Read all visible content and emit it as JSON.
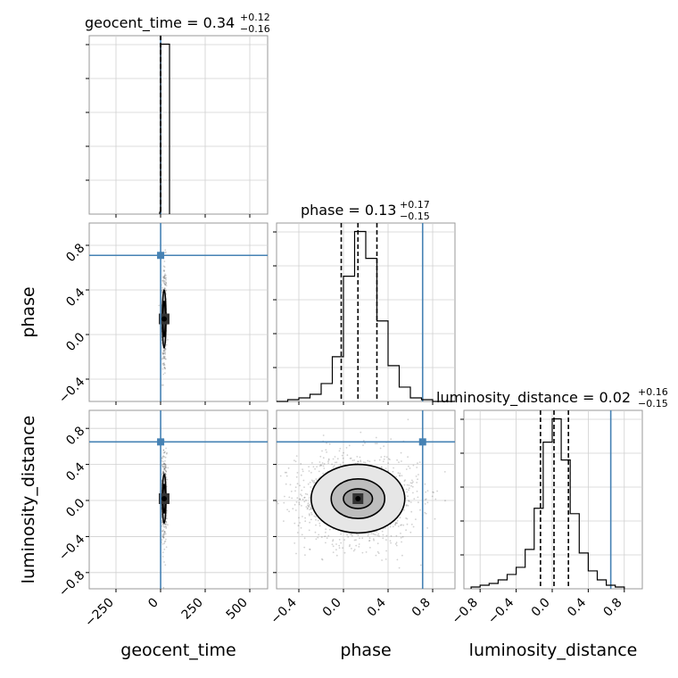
{
  "chart_data": {
    "type": "corner",
    "parameters": [
      {
        "name": "geocent_time",
        "label": "geocent_time",
        "range": [
          -400,
          600
        ],
        "ticks": [
          -250,
          0,
          250,
          500
        ],
        "tick_labels": [
          "−250",
          "0",
          "250",
          "500"
        ],
        "truth": 0.34
      },
      {
        "name": "phase",
        "label": "phase",
        "range": [
          -0.6,
          1.0
        ],
        "ticks": [
          -0.4,
          0.0,
          0.4,
          0.8
        ],
        "tick_labels": [
          "−0.4",
          "0.0",
          "0.4",
          "0.8"
        ],
        "truth": 0.71
      },
      {
        "name": "luminosity_distance",
        "label": "luminosity_distance",
        "range": [
          -0.98,
          1.0
        ],
        "ticks": [
          -0.8,
          -0.4,
          0.0,
          0.4,
          0.8
        ],
        "tick_labels": [
          "−0.8",
          "−0.4",
          "0.0",
          "0.4",
          "0.8"
        ],
        "truth": 0.65
      }
    ],
    "titles": [
      {
        "main": "geocent_time = 0.34",
        "plus": "+0.12",
        "minus": "−0.16"
      },
      {
        "main": "phase = 0.13",
        "plus": "+0.17",
        "minus": "−0.15"
      },
      {
        "main": "luminosity_distance = 0.02",
        "plus": "+0.16",
        "minus": "−0.15"
      }
    ],
    "histograms": [
      {
        "parameter": "geocent_time",
        "edges": [
          -5,
          0,
          5,
          10,
          15,
          20,
          25,
          30,
          35,
          40,
          45,
          50
        ],
        "counts": [
          0.6,
          54.6,
          54.6,
          54.6,
          54.6,
          54.6,
          54.6,
          54.6,
          54.6,
          54.6,
          54.6,
          0
        ],
        "quantiles": [
          0.18,
          0.34,
          0.46
        ]
      },
      {
        "parameter": "phase",
        "edges": [
          -0.6,
          -0.5,
          -0.4,
          -0.3,
          -0.2,
          -0.1,
          0.0,
          0.1,
          0.2,
          0.3,
          0.4,
          0.5,
          0.6,
          0.7,
          0.8,
          0.9,
          1.0
        ],
        "counts": [
          0,
          1,
          2,
          4,
          10,
          25,
          70,
          95,
          80,
          45,
          20,
          8,
          2,
          1,
          0,
          0
        ],
        "quantiles": [
          -0.02,
          0.13,
          0.3
        ]
      },
      {
        "parameter": "luminosity_distance",
        "edges": [
          -0.9,
          -0.8,
          -0.7,
          -0.6,
          -0.5,
          -0.4,
          -0.3,
          -0.2,
          -0.1,
          0.0,
          0.1,
          0.2,
          0.3,
          0.4,
          0.5,
          0.6,
          0.7,
          0.8
        ],
        "counts": [
          1,
          2,
          3,
          5,
          8,
          12,
          22,
          45,
          82,
          95,
          72,
          42,
          20,
          10,
          5,
          2,
          1
        ],
        "quantiles": [
          -0.13,
          0.02,
          0.18
        ]
      }
    ],
    "pairs": [
      {
        "x": "geocent_time",
        "y": "phase",
        "center": [
          20,
          0.14
        ],
        "spread": [
          6,
          0.16
        ],
        "contour_levels": [
          [
            6,
            0.16
          ],
          [
            10,
            0.26
          ]
        ]
      },
      {
        "x": "geocent_time",
        "y": "luminosity_distance",
        "center": [
          20,
          0.02
        ],
        "spread": [
          6,
          0.16
        ],
        "contour_levels": [
          [
            6,
            0.16
          ],
          [
            10,
            0.27
          ]
        ]
      },
      {
        "x": "phase",
        "y": "luminosity_distance",
        "center": [
          0.13,
          0.02
        ],
        "spread": [
          0.17,
          0.16
        ],
        "contour_levels": [
          [
            0.13,
            0.11
          ],
          [
            0.24,
            0.22
          ],
          [
            0.42,
            0.38
          ]
        ]
      }
    ],
    "truth_color": "#4682b4",
    "contour_color": "#000000",
    "grid": true
  }
}
